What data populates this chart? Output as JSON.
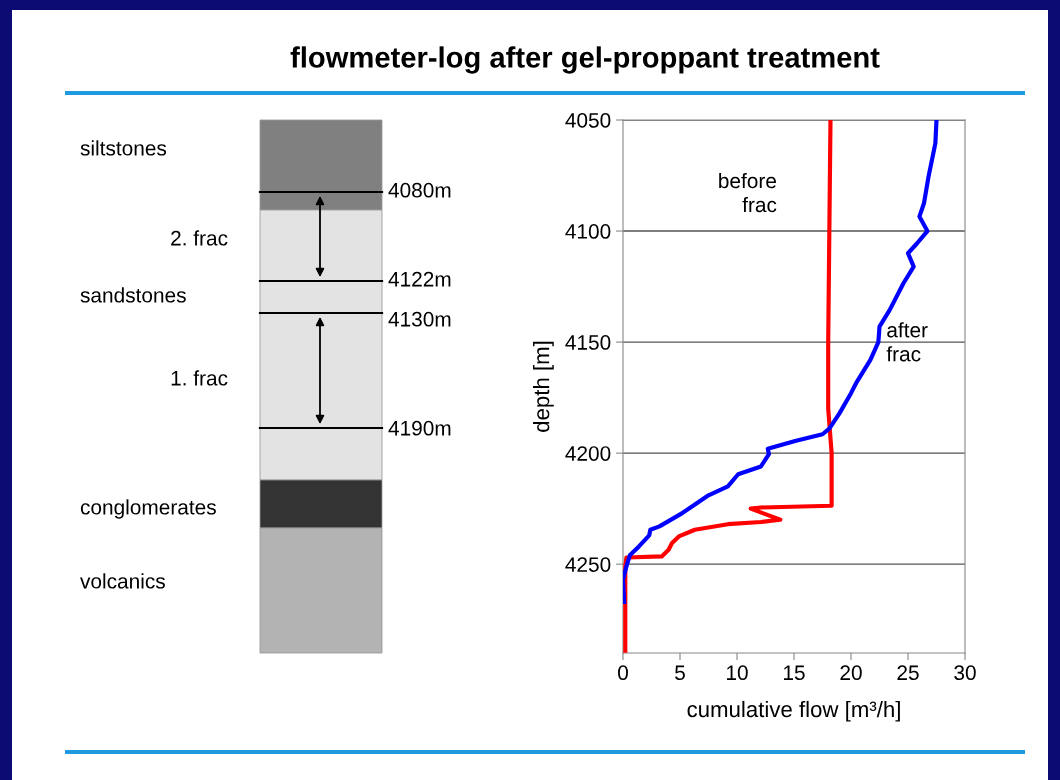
{
  "chart_data": [
    {
      "type": "other",
      "title": "flowmeter-log after gel-proppant treatment",
      "annotations": [
        "siltstones",
        "2. frac",
        "sandstones",
        "1. frac",
        "conglomerates",
        "volcanics",
        "4080m",
        "4122m",
        "4130m",
        "4190m"
      ]
    },
    {
      "type": "line",
      "xlabel": "cumulative flow [m³/h]",
      "ylabel": "depth [m]",
      "xlim": [
        0,
        30
      ],
      "xticks": [
        0,
        5,
        10,
        15,
        20,
        25,
        30
      ],
      "ylim": [
        4290,
        4050
      ],
      "yticks": [
        4050,
        4100,
        4150,
        4200,
        4250
      ],
      "grid": "y",
      "legend": false,
      "marker": "none",
      "line_style": "solid",
      "series": [
        {
          "name": "before frac",
          "color": "#ff0000",
          "x": [
            18.2,
            18.1,
            18.0,
            18.0,
            18.3,
            18.3,
            12.1,
            11.2,
            13.8,
            12.1,
            9.2,
            6.3,
            4.9,
            4.3,
            4.0,
            3.4,
            0.3,
            0.2,
            0.2
          ],
          "values": [
            4050,
            4100,
            4150,
            4180,
            4200,
            4223.7,
            4224.5,
            4225,
            4230,
            4231,
            4232,
            4234.5,
            4237.5,
            4240.5,
            4243.5,
            4246.5,
            4247,
            4251,
            4289
          ]
        },
        {
          "name": "after frac",
          "color": "#0000ff",
          "x": [
            27.5,
            27.4,
            26.8,
            26.4,
            26.0,
            26.7,
            25.8,
            25.0,
            25.5,
            24.6,
            23.4,
            22.5,
            22.4,
            21.7,
            20.5,
            20.0,
            19.0,
            18.1,
            17.5,
            15.1,
            12.7,
            12.8,
            12.1,
            10.1,
            9.2,
            7.5,
            5.2,
            3.2,
            2.4,
            2.3,
            1.4,
            0.6,
            0.3,
            0.0,
            0.1
          ],
          "values": [
            4050,
            4060.5,
            4075.5,
            4087.5,
            4093.5,
            4100,
            4105.5,
            4110,
            4116,
            4123.5,
            4135.5,
            4143,
            4150,
            4158,
            4168,
            4173,
            4182,
            4189,
            4191.5,
            4194.5,
            4198,
            4200.5,
            4206,
            4209.5,
            4215,
            4219,
            4227,
            4233,
            4234.5,
            4237,
            4242,
            4246,
            4251,
            4257,
            4267
          ]
        }
      ]
    }
  ]
}
